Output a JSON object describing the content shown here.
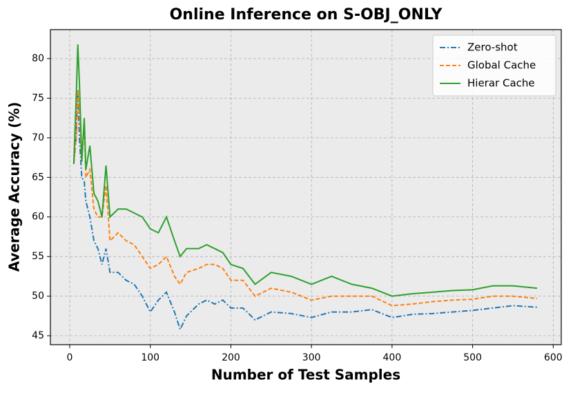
{
  "chart_data": {
    "type": "line",
    "title": "Online Inference on S-OBJ_ONLY",
    "x_label": "Number of Test Samples",
    "y_label": "Average Accuracy (%)",
    "x": [
      5,
      8,
      10,
      12,
      15,
      18,
      20,
      25,
      30,
      35,
      40,
      45,
      50,
      60,
      70,
      80,
      90,
      100,
      110,
      120,
      130,
      137,
      145,
      160,
      170,
      180,
      190,
      200,
      215,
      230,
      250,
      275,
      300,
      325,
      350,
      375,
      400,
      425,
      450,
      475,
      500,
      525,
      550,
      580
    ],
    "series": [
      {
        "name": "Zero-shot",
        "color": "#1f77b4",
        "dash": "dashdot",
        "values": [
          66.7,
          70,
          76,
          70,
          65,
          64.5,
          62,
          60,
          57,
          56,
          54,
          56,
          53,
          53,
          52,
          51.5,
          50,
          48,
          49.5,
          50.5,
          48,
          45.8,
          47.5,
          49,
          49.5,
          49,
          49.5,
          48.5,
          48.5,
          47,
          48,
          47.8,
          47.3,
          48,
          48,
          48.3,
          47.3,
          47.7,
          47.8,
          48,
          48.2,
          48.5,
          48.8,
          48.6
        ]
      },
      {
        "name": "Global Cache",
        "color": "#ff7f0e",
        "dash": "dashed",
        "values": [
          66.7,
          70,
          76,
          73,
          67,
          72,
          65,
          66,
          61,
          60,
          60,
          64,
          57,
          58,
          57,
          56.5,
          55,
          53.5,
          54,
          55,
          52.5,
          51.5,
          53,
          53.5,
          54,
          54,
          53.5,
          52,
          52,
          50,
          51,
          50.5,
          49.5,
          50,
          50,
          50,
          48.8,
          49,
          49.3,
          49.5,
          49.6,
          50,
          50,
          49.7
        ]
      },
      {
        "name": "Hierar Cache",
        "color": "#2ca02c",
        "dash": "solid",
        "values": [
          66.7,
          75,
          81.8,
          77,
          67,
          72.5,
          66,
          69,
          63,
          62,
          60,
          66.5,
          60,
          61,
          61,
          60.5,
          60,
          58.5,
          58,
          60,
          57,
          55,
          56,
          56,
          56.5,
          56,
          55.5,
          54,
          53.5,
          51.5,
          53,
          52.5,
          51.5,
          52.5,
          51.5,
          51,
          50,
          50.3,
          50.5,
          50.7,
          50.8,
          51.3,
          51.3,
          51
        ]
      }
    ],
    "xlim": [
      -24,
      610
    ],
    "ylim": [
      43.87,
      83.66
    ],
    "xticks": [
      0,
      100,
      200,
      300,
      400,
      500,
      600
    ],
    "yticks": [
      45,
      50,
      55,
      60,
      65,
      70,
      75,
      80
    ],
    "grid": true,
    "legend": "upper right"
  }
}
